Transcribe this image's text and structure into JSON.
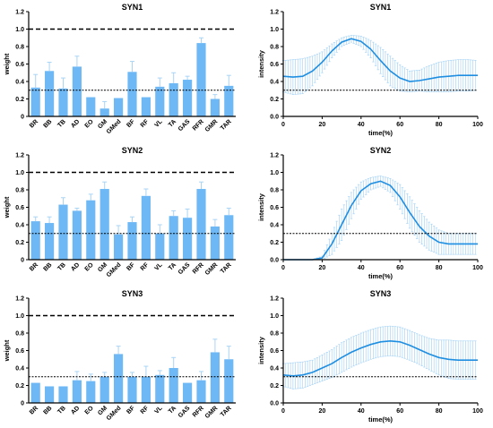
{
  "figure": {
    "background": "#ffffff"
  },
  "colors": {
    "bar": "#6db8f5",
    "error": "#a9d4f6",
    "line": "#1f8ee0",
    "band": "#a9d4f6",
    "axis": "#000000"
  },
  "chart_data": [
    {
      "type": "bar",
      "title": "SYN1",
      "ylabel": "weight",
      "xlabel": "",
      "categories": [
        "BR",
        "BB",
        "TB",
        "AD",
        "EO",
        "GM",
        "GMed",
        "BF",
        "RF",
        "VL",
        "TA",
        "GAS",
        "RFR",
        "GMR",
        "TAR"
      ],
      "values": [
        0.33,
        0.52,
        0.32,
        0.57,
        0.22,
        0.09,
        0.21,
        0.51,
        0.22,
        0.34,
        0.38,
        0.42,
        0.84,
        0.2,
        0.35
      ],
      "errors": [
        0.15,
        0.1,
        0.12,
        0.12,
        0.0,
        0.08,
        0.0,
        0.12,
        0.0,
        0.1,
        0.12,
        0.04,
        0.06,
        0.05,
        0.12
      ],
      "ylim": [
        0,
        1.2
      ],
      "yticks": [
        "0",
        "0.2",
        "0.4",
        "0.6",
        "0.8",
        "1.0",
        "1.2"
      ],
      "hlines": [
        {
          "y": 1.0,
          "style": "dashed"
        },
        {
          "y": 0.3,
          "style": "dotted"
        }
      ],
      "grid": false
    },
    {
      "type": "line",
      "title": "SYN1",
      "ylabel": "intensity",
      "xlabel": "time(%)",
      "x": [
        0,
        5,
        10,
        15,
        20,
        25,
        30,
        35,
        40,
        45,
        50,
        55,
        60,
        65,
        70,
        75,
        80,
        85,
        90,
        95,
        100
      ],
      "values": [
        0.46,
        0.45,
        0.46,
        0.52,
        0.62,
        0.75,
        0.85,
        0.89,
        0.86,
        0.77,
        0.64,
        0.52,
        0.44,
        0.4,
        0.41,
        0.43,
        0.45,
        0.46,
        0.47,
        0.47,
        0.47
      ],
      "error": [
        0.18,
        0.2,
        0.2,
        0.17,
        0.12,
        0.08,
        0.05,
        0.04,
        0.06,
        0.1,
        0.15,
        0.17,
        0.15,
        0.12,
        0.12,
        0.15,
        0.17,
        0.18,
        0.18,
        0.18,
        0.17
      ],
      "xlim": [
        0,
        100
      ],
      "ylim": [
        0,
        1.2
      ],
      "xticks": [
        "0",
        "20",
        "40",
        "60",
        "80",
        "100"
      ],
      "yticks": [
        "0.0",
        "0.2",
        "0.4",
        "0.6",
        "0.8",
        "1.0",
        "1.2"
      ],
      "hlines": [
        {
          "y": 0.3,
          "style": "dotted"
        }
      ],
      "grid": false
    },
    {
      "type": "bar",
      "title": "SYN2",
      "ylabel": "weight",
      "xlabel": "",
      "categories": [
        "BR",
        "BB",
        "TB",
        "AD",
        "EO",
        "GM",
        "GMed",
        "BF",
        "RF",
        "VL",
        "TA",
        "GAS",
        "RFR",
        "GMR",
        "TAR"
      ],
      "values": [
        0.44,
        0.42,
        0.63,
        0.56,
        0.68,
        0.81,
        0.29,
        0.43,
        0.73,
        0.3,
        0.5,
        0.48,
        0.81,
        0.38,
        0.51
      ],
      "errors": [
        0.05,
        0.07,
        0.08,
        0.03,
        0.07,
        0.08,
        0.1,
        0.06,
        0.08,
        0.1,
        0.06,
        0.1,
        0.08,
        0.08,
        0.08
      ],
      "ylim": [
        0,
        1.2
      ],
      "yticks": [
        "0",
        "0.2",
        "0.4",
        "0.6",
        "0.8",
        "1.0",
        "1.2"
      ],
      "hlines": [
        {
          "y": 1.0,
          "style": "dashed"
        },
        {
          "y": 0.3,
          "style": "dotted"
        }
      ],
      "grid": false
    },
    {
      "type": "line",
      "title": "SYN2",
      "ylabel": "intensity",
      "xlabel": "time(%)",
      "x": [
        0,
        5,
        10,
        15,
        20,
        25,
        30,
        35,
        40,
        45,
        50,
        55,
        60,
        65,
        70,
        75,
        80,
        85,
        90,
        95,
        100
      ],
      "values": [
        0.0,
        0.0,
        0.0,
        0.0,
        0.02,
        0.18,
        0.4,
        0.62,
        0.79,
        0.87,
        0.9,
        0.85,
        0.72,
        0.54,
        0.38,
        0.27,
        0.2,
        0.18,
        0.18,
        0.18,
        0.18
      ],
      "error": [
        0.0,
        0.0,
        0.0,
        0.0,
        0.02,
        0.12,
        0.18,
        0.15,
        0.1,
        0.07,
        0.06,
        0.08,
        0.14,
        0.18,
        0.18,
        0.16,
        0.14,
        0.12,
        0.12,
        0.12,
        0.12
      ],
      "xlim": [
        0,
        100
      ],
      "ylim": [
        0,
        1.2
      ],
      "xticks": [
        "0",
        "20",
        "40",
        "60",
        "80",
        "100"
      ],
      "yticks": [
        "0.0",
        "0.2",
        "0.4",
        "0.6",
        "0.8",
        "1.0",
        "1.2"
      ],
      "hlines": [
        {
          "y": 0.3,
          "style": "dotted"
        }
      ],
      "grid": false
    },
    {
      "type": "bar",
      "title": "SYN3",
      "ylabel": "weight",
      "xlabel": "",
      "categories": [
        "BR",
        "BB",
        "TB",
        "AD",
        "EO",
        "GM",
        "GMed",
        "BF",
        "RF",
        "VL",
        "TA",
        "GAS",
        "RFR",
        "GMR",
        "TAR"
      ],
      "values": [
        0.23,
        0.19,
        0.19,
        0.26,
        0.25,
        0.3,
        0.56,
        0.3,
        0.3,
        0.32,
        0.4,
        0.23,
        0.26,
        0.58,
        0.5
      ],
      "errors": [
        0.0,
        0.0,
        0.0,
        0.1,
        0.08,
        0.05,
        0.09,
        0.05,
        0.12,
        0.05,
        0.12,
        0.0,
        0.1,
        0.15,
        0.15
      ],
      "ylim": [
        0,
        1.2
      ],
      "yticks": [
        "0",
        "0.2",
        "0.4",
        "0.6",
        "0.8",
        "1.0",
        "1.2"
      ],
      "hlines": [
        {
          "y": 1.0,
          "style": "dashed"
        },
        {
          "y": 0.3,
          "style": "dotted"
        }
      ],
      "grid": false
    },
    {
      "type": "line",
      "title": "SYN3",
      "ylabel": "intensity",
      "xlabel": "time(%)",
      "x": [
        0,
        5,
        10,
        15,
        20,
        25,
        30,
        35,
        40,
        45,
        50,
        55,
        60,
        65,
        70,
        75,
        80,
        85,
        90,
        95,
        100
      ],
      "values": [
        0.32,
        0.31,
        0.32,
        0.35,
        0.4,
        0.45,
        0.52,
        0.58,
        0.63,
        0.67,
        0.7,
        0.71,
        0.7,
        0.66,
        0.61,
        0.56,
        0.52,
        0.5,
        0.49,
        0.49,
        0.49
      ],
      "error": [
        0.13,
        0.15,
        0.15,
        0.14,
        0.15,
        0.16,
        0.17,
        0.17,
        0.17,
        0.17,
        0.17,
        0.17,
        0.17,
        0.17,
        0.17,
        0.18,
        0.2,
        0.22,
        0.22,
        0.22,
        0.22
      ],
      "xlim": [
        0,
        100
      ],
      "ylim": [
        0,
        1.2
      ],
      "xticks": [
        "0",
        "20",
        "40",
        "60",
        "80",
        "100"
      ],
      "yticks": [
        "0.0",
        "0.2",
        "0.4",
        "0.6",
        "0.8",
        "1.0",
        "1.2"
      ],
      "hlines": [
        {
          "y": 0.3,
          "style": "dotted"
        }
      ],
      "grid": false
    }
  ]
}
